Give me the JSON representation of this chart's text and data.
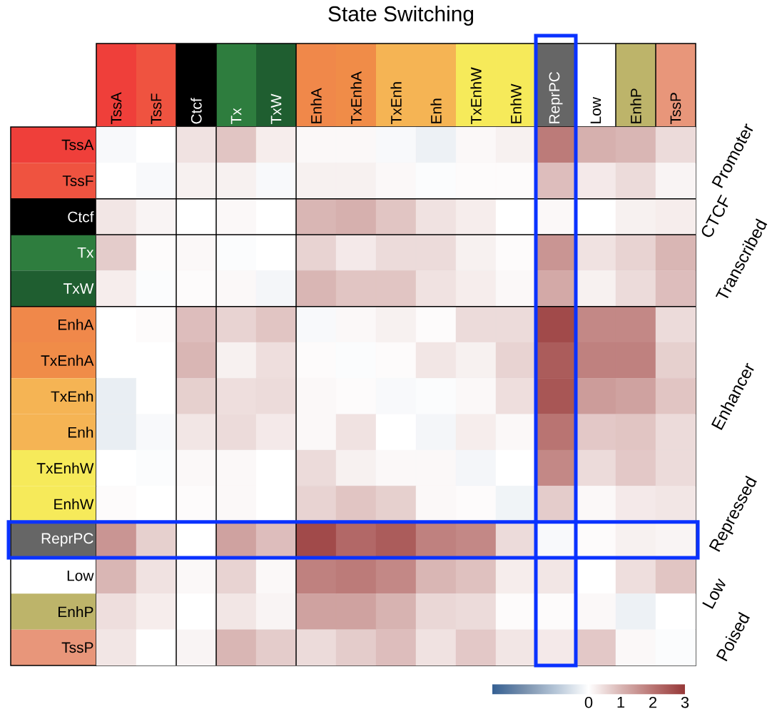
{
  "chart_data": {
    "type": "heatmap",
    "title": "State Switching",
    "categories": [
      "TssA",
      "TssF",
      "Ctcf",
      "Tx",
      "TxW",
      "EnhA",
      "TxEnhA",
      "TxEnh",
      "Enh",
      "TxEnhW",
      "EnhW",
      "ReprPC",
      "Low",
      "EnhP",
      "TssP"
    ],
    "y_categories": [
      "TssA",
      "TssF",
      "Ctcf",
      "Tx",
      "TxW",
      "EnhA",
      "TxEnhA",
      "TxEnh",
      "Enh",
      "TxEnhW",
      "EnhW",
      "ReprPC",
      "Low",
      "EnhP",
      "TssP"
    ],
    "cells": [
      [
        -0.1,
        0,
        0.4,
        0.8,
        0.25,
        0.1,
        0.1,
        -0.1,
        -0.25,
        0.1,
        0.2,
        1.9,
        1.1,
        1.0,
        0.5
      ],
      [
        0,
        -0.1,
        0.2,
        0.2,
        -0.1,
        0.2,
        0.2,
        0.1,
        -0.05,
        0.05,
        0.05,
        0.9,
        0.3,
        0.5,
        0.15
      ],
      [
        0.35,
        0.15,
        0,
        0.1,
        0,
        1.0,
        1.1,
        0.8,
        0.4,
        0.25,
        0,
        0.1,
        0,
        0.2,
        0.25
      ],
      [
        0.7,
        0.05,
        0.1,
        -0.05,
        0,
        0.6,
        0.3,
        0.5,
        0.5,
        0.2,
        0.05,
        1.5,
        0.4,
        0.6,
        1.0
      ],
      [
        0.25,
        -0.05,
        0.05,
        0.1,
        -0.15,
        1.0,
        0.8,
        0.8,
        0.4,
        0.25,
        0.1,
        1.2,
        0.2,
        0.5,
        0.9
      ],
      [
        0,
        0.05,
        0.9,
        0.6,
        0.8,
        -0.1,
        0.1,
        0.2,
        0.05,
        0.5,
        0.5,
        2.7,
        1.7,
        1.7,
        0.5
      ],
      [
        0,
        0,
        1.0,
        0.2,
        0.45,
        0.05,
        -0.05,
        0.05,
        0.35,
        0.2,
        0.6,
        2.4,
        1.8,
        1.8,
        0.65
      ],
      [
        -0.3,
        0,
        0.65,
        0.45,
        0.5,
        0.1,
        0.05,
        -0.1,
        -0.05,
        0.1,
        0.45,
        2.5,
        1.4,
        1.3,
        0.8
      ],
      [
        -0.3,
        -0.1,
        0.35,
        0.5,
        0.3,
        0.1,
        0.4,
        0,
        -0.15,
        0.25,
        0.1,
        2.0,
        0.75,
        0.8,
        0.5
      ],
      [
        0,
        -0.05,
        0.1,
        0.1,
        0,
        0.5,
        0.2,
        0.1,
        0.1,
        -0.15,
        0,
        1.7,
        0.5,
        0.75,
        0.5
      ],
      [
        0.05,
        0,
        0.05,
        0.1,
        0,
        0.6,
        0.8,
        0.65,
        0.1,
        0.05,
        -0.2,
        0.7,
        0.1,
        0.3,
        0.35
      ],
      [
        1.5,
        0.65,
        0,
        1.3,
        0.9,
        2.7,
        2.2,
        2.4,
        1.8,
        1.7,
        0.5,
        -0.1,
        0.05,
        0.2,
        0.15
      ],
      [
        1.0,
        0.4,
        0.1,
        0.6,
        0.1,
        1.8,
        1.9,
        1.7,
        1.0,
        0.85,
        0.25,
        0.35,
        0,
        0.45,
        0.8
      ],
      [
        0.45,
        0.25,
        0,
        0.35,
        0.15,
        1.3,
        1.3,
        1.05,
        0.55,
        0.5,
        0.05,
        0.05,
        0.1,
        -0.25,
        0
      ],
      [
        0.35,
        0,
        0.15,
        1.0,
        0.7,
        0.5,
        0.7,
        0.9,
        0.4,
        0.75,
        0.35,
        0.3,
        0.75,
        0.1,
        -0.05
      ]
    ],
    "clim": [
      -3,
      3
    ],
    "cticks": [
      0,
      1,
      2,
      3
    ],
    "annotations": [
      "Promoter",
      "CTCF",
      "Transcribed",
      "Enhancer",
      "Repressed",
      "Low",
      "Poised"
    ]
  }
}
